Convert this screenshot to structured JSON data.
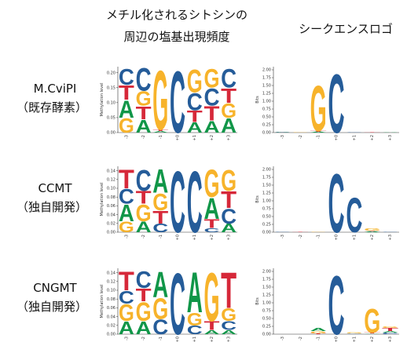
{
  "header": {
    "left": [
      "メチル化されるシトシンの",
      "周辺の塩基出現頻度"
    ],
    "right": "シークエンスロゴ"
  },
  "colors": {
    "A": "#109648",
    "C": "#255c99",
    "G": "#f7b32b",
    "T": "#d62839"
  },
  "rows": [
    {
      "label": "M.CviPI",
      "sublabel": "（既存酵素）",
      "freq": {
        "ylabel": "Methylation level",
        "ylim": [
          0,
          0.22
        ],
        "yticks": [
          {
            "value": 0,
            "label": "0.00"
          },
          {
            "value": 0.05,
            "label": "0.05"
          },
          {
            "value": 0.1,
            "label": "0.10"
          },
          {
            "value": 0.15,
            "label": "0.15"
          },
          {
            "value": 0.2,
            "label": "0.20"
          }
        ],
        "categories": [
          "-3",
          "-2",
          "-1",
          "+0",
          "+1",
          "+2",
          "+3"
        ],
        "stacks": [
          [
            {
              "base": "G",
              "value": 0.05
            },
            {
              "base": "A",
              "value": 0.06
            },
            {
              "base": "T",
              "value": 0.05
            },
            {
              "base": "C",
              "value": 0.055
            }
          ],
          [
            {
              "base": "A",
              "value": 0.045
            },
            {
              "base": "T",
              "value": 0.045
            },
            {
              "base": "G",
              "value": 0.05
            },
            {
              "base": "C",
              "value": 0.08
            }
          ],
          [
            {
              "base": "A",
              "value": 0.005
            },
            {
              "base": "T",
              "value": 0.005
            },
            {
              "base": "G",
              "value": 0.205
            }
          ],
          [
            {
              "base": "C",
              "value": 0.215
            }
          ],
          [
            {
              "base": "A",
              "value": 0.035
            },
            {
              "base": "T",
              "value": 0.04
            },
            {
              "base": "C",
              "value": 0.06
            },
            {
              "base": "G",
              "value": 0.08
            }
          ],
          [
            {
              "base": "A",
              "value": 0.04
            },
            {
              "base": "T",
              "value": 0.05
            },
            {
              "base": "C",
              "value": 0.06
            },
            {
              "base": "G",
              "value": 0.065
            }
          ],
          [
            {
              "base": "A",
              "value": 0.05
            },
            {
              "base": "G",
              "value": 0.05
            },
            {
              "base": "T",
              "value": 0.05
            },
            {
              "base": "C",
              "value": 0.065
            }
          ]
        ]
      },
      "logo": {
        "ylabel": "Bits",
        "ylim": [
          0,
          2.1
        ],
        "yticks": [
          {
            "value": 0,
            "label": "0.00"
          },
          {
            "value": 0.25,
            "label": "0.25"
          },
          {
            "value": 0.5,
            "label": "0.50"
          },
          {
            "value": 0.75,
            "label": "0.75"
          },
          {
            "value": 1,
            "label": "1.00"
          },
          {
            "value": 1.25,
            "label": "1.25"
          },
          {
            "value": 1.5,
            "label": "1.50"
          },
          {
            "value": 1.75,
            "label": "1.75"
          },
          {
            "value": 2,
            "label": "2.00"
          }
        ],
        "categories": [
          "-3",
          "-2",
          "-1",
          "+0",
          "+1",
          "+2",
          "+3"
        ],
        "stacks": [
          [
            {
              "base": "A",
              "value": 0.01
            },
            {
              "base": "C",
              "value": 0.01
            }
          ],
          [
            {
              "base": "G",
              "value": 0.01
            }
          ],
          [
            {
              "base": "A",
              "value": 0.03
            },
            {
              "base": "T",
              "value": 0.03
            },
            {
              "base": "G",
              "value": 1.5
            }
          ],
          [
            {
              "base": "C",
              "value": 1.95
            }
          ],
          [
            {
              "base": "C",
              "value": 0.01
            }
          ],
          [
            {
              "base": "T",
              "value": 0.01
            }
          ],
          [
            {
              "base": "A",
              "value": 0.01
            }
          ]
        ]
      }
    },
    {
      "label": "CCMT",
      "sublabel": "（独自開発）",
      "freq": {
        "ylabel": "Methylation level",
        "ylim": [
          0,
          0.15
        ],
        "yticks": [
          {
            "value": 0,
            "label": "0.00"
          },
          {
            "value": 0.02,
            "label": "0.02"
          },
          {
            "value": 0.04,
            "label": "0.04"
          },
          {
            "value": 0.06,
            "label": "0.06"
          },
          {
            "value": 0.08,
            "label": "0.08"
          },
          {
            "value": 0.1,
            "label": "0.10"
          },
          {
            "value": 0.12,
            "label": "0.12"
          },
          {
            "value": 0.14,
            "label": "0.14"
          }
        ],
        "categories": [
          "-3",
          "-2",
          "-1",
          "+0",
          "+1",
          "+2",
          "+3"
        ],
        "stacks": [
          [
            {
              "base": "G",
              "value": 0.025
            },
            {
              "base": "A",
              "value": 0.04
            },
            {
              "base": "C",
              "value": 0.035
            },
            {
              "base": "T",
              "value": 0.045
            }
          ],
          [
            {
              "base": "A",
              "value": 0.025
            },
            {
              "base": "G",
              "value": 0.04
            },
            {
              "base": "T",
              "value": 0.03
            },
            {
              "base": "C",
              "value": 0.05
            }
          ],
          [
            {
              "base": "C",
              "value": 0.02
            },
            {
              "base": "T",
              "value": 0.03
            },
            {
              "base": "G",
              "value": 0.04
            },
            {
              "base": "A",
              "value": 0.055
            }
          ],
          [
            {
              "base": "C",
              "value": 0.145
            }
          ],
          [
            {
              "base": "C",
              "value": 0.145
            }
          ],
          [
            {
              "base": "C",
              "value": 0.01
            },
            {
              "base": "T",
              "value": 0.02
            },
            {
              "base": "A",
              "value": 0.05
            },
            {
              "base": "G",
              "value": 0.065
            }
          ],
          [
            {
              "base": "A",
              "value": 0.02
            },
            {
              "base": "C",
              "value": 0.035
            },
            {
              "base": "T",
              "value": 0.04
            },
            {
              "base": "G",
              "value": 0.05
            }
          ]
        ]
      },
      "logo": {
        "ylabel": "Bits",
        "ylim": [
          0,
          2.1
        ],
        "yticks": [
          {
            "value": 0,
            "label": "0.00"
          },
          {
            "value": 0.25,
            "label": "0.25"
          },
          {
            "value": 0.5,
            "label": "0.50"
          },
          {
            "value": 0.75,
            "label": "0.75"
          },
          {
            "value": 1,
            "label": "1.00"
          },
          {
            "value": 1.25,
            "label": "1.25"
          },
          {
            "value": 1.5,
            "label": "1.50"
          },
          {
            "value": 1.75,
            "label": "1.75"
          },
          {
            "value": 2,
            "label": "2.00"
          }
        ],
        "categories": [
          "-3",
          "-2",
          "-1",
          "+0",
          "+1",
          "+2",
          "+3"
        ],
        "stacks": [
          [
            {
              "base": "C",
              "value": 0.01
            }
          ],
          [
            {
              "base": "T",
              "value": 0.01
            }
          ],
          [
            {
              "base": "G",
              "value": 0.02
            }
          ],
          [
            {
              "base": "C",
              "value": 1.95
            }
          ],
          [
            {
              "base": "C",
              "value": 1.15
            }
          ],
          [
            {
              "base": "A",
              "value": 0.03
            },
            {
              "base": "T",
              "value": 0.02
            },
            {
              "base": "G",
              "value": 0.08
            }
          ],
          [
            {
              "base": "C",
              "value": 0.01
            }
          ]
        ]
      }
    },
    {
      "label": "CNGMT",
      "sublabel": "（独自開発）",
      "freq": {
        "ylabel": "Methylation level",
        "ylim": [
          0,
          0.15
        ],
        "yticks": [
          {
            "value": 0,
            "label": "0.00"
          },
          {
            "value": 0.02,
            "label": "0.02"
          },
          {
            "value": 0.04,
            "label": "0.04"
          },
          {
            "value": 0.06,
            "label": "0.06"
          },
          {
            "value": 0.08,
            "label": "0.08"
          },
          {
            "value": 0.1,
            "label": "0.10"
          },
          {
            "value": 0.12,
            "label": "0.12"
          },
          {
            "value": 0.14,
            "label": "0.14"
          }
        ],
        "categories": [
          "-3",
          "-2",
          "-1",
          "+0",
          "+1",
          "+2",
          "+3"
        ],
        "stacks": [
          [
            {
              "base": "A",
              "value": 0.03
            },
            {
              "base": "G",
              "value": 0.04
            },
            {
              "base": "C",
              "value": 0.03
            },
            {
              "base": "T",
              "value": 0.045
            }
          ],
          [
            {
              "base": "A",
              "value": 0.03
            },
            {
              "base": "G",
              "value": 0.045
            },
            {
              "base": "T",
              "value": 0.03
            },
            {
              "base": "C",
              "value": 0.04
            }
          ],
          [
            {
              "base": "C",
              "value": 0.035
            },
            {
              "base": "G",
              "value": 0.05
            },
            {
              "base": "A",
              "value": 0.06
            }
          ],
          [
            {
              "base": "C",
              "value": 0.145
            }
          ],
          [
            {
              "base": "C",
              "value": 0.02
            },
            {
              "base": "G",
              "value": 0.03
            },
            {
              "base": "A",
              "value": 0.095
            }
          ],
          [
            {
              "base": "A",
              "value": 0.01
            },
            {
              "base": "T",
              "value": 0.02
            },
            {
              "base": "G",
              "value": 0.115
            }
          ],
          [
            {
              "base": "A",
              "value": 0.01
            },
            {
              "base": "C",
              "value": 0.02
            },
            {
              "base": "G",
              "value": 0.03
            },
            {
              "base": "T",
              "value": 0.085
            }
          ]
        ]
      },
      "logo": {
        "ylabel": "Bits",
        "ylim": [
          0,
          2.1
        ],
        "yticks": [
          {
            "value": 0,
            "label": "0.00"
          },
          {
            "value": 0.25,
            "label": "0.25"
          },
          {
            "value": 0.5,
            "label": "0.50"
          },
          {
            "value": 0.75,
            "label": "0.75"
          },
          {
            "value": 1,
            "label": "1.00"
          },
          {
            "value": 1.25,
            "label": "1.25"
          },
          {
            "value": 1.5,
            "label": "1.50"
          },
          {
            "value": 1.75,
            "label": "1.75"
          },
          {
            "value": 2,
            "label": "2.00"
          }
        ],
        "categories": [
          "-3",
          "-2",
          "-1",
          "+0",
          "+1",
          "+2",
          "+3"
        ],
        "stacks": [
          [],
          [],
          [
            {
              "base": "T",
              "value": 0.03
            },
            {
              "base": "G",
              "value": 0.07
            },
            {
              "base": "A",
              "value": 0.1
            }
          ],
          [
            {
              "base": "C",
              "value": 1.95
            }
          ],
          [
            {
              "base": "C",
              "value": 0.02
            },
            {
              "base": "G",
              "value": 0.03
            }
          ],
          [
            {
              "base": "A",
              "value": 0.02
            },
            {
              "base": "T",
              "value": 0.03
            },
            {
              "base": "G",
              "value": 0.8
            }
          ],
          [
            {
              "base": "C",
              "value": 0.05
            },
            {
              "base": "A",
              "value": 0.05
            },
            {
              "base": "T",
              "value": 0.1
            },
            {
              "base": "G",
              "value": 0.05
            }
          ]
        ]
      }
    }
  ]
}
